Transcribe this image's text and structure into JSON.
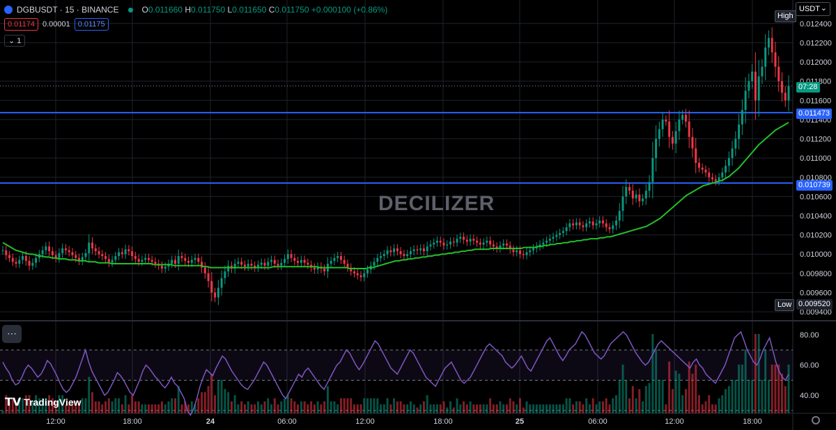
{
  "header": {
    "symbol": "DGBUSDT · 15 · BINANCE",
    "open": "0.011660",
    "high": "0.011750",
    "low": "0.011650",
    "close": "0.011750",
    "change": "+0.000100 (+0.86%)",
    "o_label": "O",
    "h_label": "H",
    "l_label": "L",
    "c_label": "C"
  },
  "quotes": {
    "sell": "0.01174",
    "spread": "0.00001",
    "buy": "0.01175"
  },
  "collapse_label": "1",
  "currency": "USDT",
  "watermark": "DECILIZER",
  "brand": "TradingView",
  "tags": {
    "high_label": "High",
    "low_label": "Low",
    "low_value": "0.009520",
    "countdown": "07:28",
    "upper_line": "0.011473",
    "lower_line": "0.010739"
  },
  "colors": {
    "up": "#089981",
    "down": "#f23645",
    "ma": "#22c02b",
    "rsi": "#7e57c2",
    "line": "#2962ff"
  },
  "chart_data": {
    "type": "candlestick",
    "price_ticks": [
      "0.012400",
      "0.012200",
      "0.012000",
      "0.011800",
      "0.011600",
      "0.011400",
      "0.011200",
      "0.011000",
      "0.010800",
      "0.010600",
      "0.010400",
      "0.010200",
      "0.010000",
      "0.009800",
      "0.009600",
      "0.009400"
    ],
    "rsi_ticks": [
      "80.00",
      "60.00",
      "40.00"
    ],
    "x_ticks": [
      "12:00",
      "18:00",
      "24",
      "06:00",
      "12:00",
      "18:00",
      "25",
      "06:00",
      "12:00",
      "18:00"
    ],
    "horizontal_lines": [
      0.011473,
      0.010739
    ],
    "last_price": 0.01175,
    "high": 0.01246,
    "low": 0.00952,
    "close_series": [
      0.01004,
      0.00999,
      0.00996,
      0.00992,
      0.0099,
      0.00994,
      0.00998,
      0.00993,
      0.00988,
      0.00991,
      0.00996,
      0.01,
      0.01004,
      0.01008,
      0.01003,
      0.00999,
      0.00996,
      0.01001,
      0.01006,
      0.01004,
      0.01002,
      0.00999,
      0.00996,
      0.00993,
      0.00997,
      0.01001,
      0.01012,
      0.01006,
      0.01003,
      0.01,
      0.00998,
      0.00995,
      0.00991,
      0.00994,
      0.00998,
      0.01002,
      0.01,
      0.01005,
      0.01003,
      0.00998,
      0.00995,
      0.00992,
      0.00994,
      0.00996,
      0.00994,
      0.00992,
      0.0099,
      0.00988,
      0.00985,
      0.00987,
      0.0099,
      0.00994,
      0.0099,
      0.00998,
      0.00996,
      0.00993,
      0.00991,
      0.00994,
      0.00996,
      0.00992,
      0.00986,
      0.0098,
      0.00972,
      0.0096,
      0.00955,
      0.00965,
      0.00975,
      0.00982,
      0.00988,
      0.00985,
      0.0099,
      0.00992,
      0.00989,
      0.00987,
      0.0099,
      0.00988,
      0.00986,
      0.00989,
      0.00991,
      0.00988,
      0.00992,
      0.00994,
      0.0099,
      0.00988,
      0.00991,
      0.00995,
      0.01,
      0.00996,
      0.00993,
      0.00991,
      0.00994,
      0.00991,
      0.00989,
      0.00986,
      0.00984,
      0.00987,
      0.00985,
      0.00982,
      0.0099,
      0.00993,
      0.00996,
      0.00998,
      0.00994,
      0.0099,
      0.00986,
      0.00982,
      0.0098,
      0.00978,
      0.00976,
      0.0098,
      0.00984,
      0.00988,
      0.00992,
      0.00996,
      0.00998,
      0.01,
      0.01004,
      0.01002,
      0.01006,
      0.01003,
      0.01,
      0.00998,
      0.01,
      0.01003,
      0.01005,
      0.01004,
      0.01006,
      0.01003,
      0.01008,
      0.0101,
      0.01012,
      0.01014,
      0.01012,
      0.01009,
      0.0101,
      0.01013,
      0.01012,
      0.01016,
      0.01018,
      0.01015,
      0.01013,
      0.01016,
      0.01014,
      0.01012,
      0.0101,
      0.01012,
      0.01014,
      0.0101,
      0.01008,
      0.01006,
      0.01009,
      0.01011,
      0.01009,
      0.01005,
      0.01002,
      0.01004,
      0.01,
      0.00999,
      0.01002,
      0.01004,
      0.01006,
      0.01008,
      0.0101,
      0.01012,
      0.01014,
      0.01016,
      0.01018,
      0.0102,
      0.01022,
      0.01024,
      0.01028,
      0.01032,
      0.0103,
      0.01033,
      0.0103,
      0.01028,
      0.01032,
      0.01034,
      0.0103,
      0.01032,
      0.01035,
      0.01032,
      0.01028,
      0.01026,
      0.0103,
      0.01035,
      0.01045,
      0.0106,
      0.0107,
      0.01066,
      0.01058,
      0.01062,
      0.01055,
      0.01058,
      0.01066,
      0.01075,
      0.011,
      0.0112,
      0.0113,
      0.0114,
      0.01138,
      0.01122,
      0.01115,
      0.01128,
      0.0114,
      0.01145,
      0.01138,
      0.01122,
      0.0111,
      0.01095,
      0.0109,
      0.01088,
      0.01085,
      0.0108,
      0.01078,
      0.01076,
      0.0108,
      0.01085,
      0.01092,
      0.011,
      0.0111,
      0.0112,
      0.01135,
      0.0115,
      0.0117,
      0.0118,
      0.0119,
      0.0116,
      0.01185,
      0.01195,
      0.01215,
      0.01225,
      0.0121,
      0.01195,
      0.0118,
      0.01168,
      0.0116,
      0.01175
    ],
    "ma_series": [
      0.01012,
      0.0101,
      0.01008,
      0.01006,
      0.01004,
      0.01003,
      0.01002,
      0.01001,
      0.01,
      0.01,
      0.00999,
      0.00998,
      0.00998,
      0.00997,
      0.00997,
      0.00996,
      0.00996,
      0.00995,
      0.00995,
      0.00995,
      0.00994,
      0.00994,
      0.00994,
      0.00993,
      0.00993,
      0.00993,
      0.00992,
      0.00992,
      0.00992,
      0.00991,
      0.00991,
      0.00991,
      0.00991,
      0.0099,
      0.0099,
      0.0099,
      0.0099,
      0.0099,
      0.0099,
      0.0099,
      0.0099,
      0.0099,
      0.0099,
      0.0099,
      0.0099,
      0.0099,
      0.00989,
      0.00989,
      0.00989,
      0.00989,
      0.00989,
      0.00989,
      0.00988,
      0.00988,
      0.00988,
      0.00988,
      0.00988,
      0.00988,
      0.00988,
      0.00988,
      0.00988,
      0.00987,
      0.00987,
      0.00986,
      0.00986,
      0.00986,
      0.00986,
      0.00986,
      0.00986,
      0.00986,
      0.00986,
      0.00986,
      0.00986,
      0.00986,
      0.00986,
      0.00986,
      0.00986,
      0.00986,
      0.00986,
      0.00986,
      0.00986,
      0.00986,
      0.00987,
      0.00987,
      0.00987,
      0.00987,
      0.00987,
      0.00987,
      0.00987,
      0.00987,
      0.00987,
      0.00987,
      0.00987,
      0.00987,
      0.00987,
      0.00987,
      0.00986,
      0.00986,
      0.00986,
      0.00986,
      0.00986,
      0.00986,
      0.00986,
      0.00986,
      0.00986,
      0.00985,
      0.00985,
      0.00985,
      0.00985,
      0.00985,
      0.00985,
      0.00986,
      0.00986,
      0.00987,
      0.00988,
      0.00989,
      0.0099,
      0.00991,
      0.00992,
      0.00993,
      0.00993,
      0.00994,
      0.00994,
      0.00995,
      0.00995,
      0.00996,
      0.00996,
      0.00997,
      0.00997,
      0.00998,
      0.00998,
      0.00999,
      0.00999,
      0.01,
      0.01,
      0.01001,
      0.01001,
      0.01002,
      0.01002,
      0.01003,
      0.01003,
      0.01004,
      0.01004,
      0.01005,
      0.01005,
      0.01005,
      0.01005,
      0.01005,
      0.01006,
      0.01006,
      0.01006,
      0.01006,
      0.01006,
      0.01006,
      0.01006,
      0.01006,
      0.01006,
      0.01006,
      0.01007,
      0.01007,
      0.01007,
      0.01007,
      0.01008,
      0.01008,
      0.01009,
      0.01009,
      0.0101,
      0.0101,
      0.01011,
      0.01011,
      0.01012,
      0.01012,
      0.01013,
      0.01013,
      0.01014,
      0.01014,
      0.01015,
      0.01015,
      0.01016,
      0.01016,
      0.01016,
      0.01017,
      0.01017,
      0.01018,
      0.01018,
      0.01019,
      0.0102,
      0.01021,
      0.01022,
      0.01023,
      0.01024,
      0.01025,
      0.01026,
      0.01027,
      0.01028,
      0.01029,
      0.01031,
      0.01033,
      0.01035,
      0.01037,
      0.0104,
      0.01043,
      0.01046,
      0.01049,
      0.01052,
      0.01055,
      0.01058,
      0.01061,
      0.01063,
      0.01065,
      0.01067,
      0.01069,
      0.01071,
      0.01072,
      0.01073,
      0.01074,
      0.01075,
      0.01076,
      0.01077,
      0.01079,
      0.01081,
      0.01084,
      0.01087,
      0.0109,
      0.01094,
      0.01098,
      0.01102,
      0.01106,
      0.0111,
      0.01114,
      0.01117,
      0.0112,
      0.01123,
      0.01126,
      0.01129,
      0.01131,
      0.01133,
      0.01135,
      0.01137
    ],
    "rsi_series": [
      62,
      58,
      55,
      50,
      47,
      48,
      52,
      57,
      60,
      58,
      55,
      52,
      54,
      58,
      63,
      61,
      57,
      53,
      48,
      44,
      42,
      44,
      48,
      52,
      58,
      64,
      70,
      62,
      56,
      52,
      48,
      44,
      40,
      42,
      46,
      50,
      55,
      53,
      50,
      46,
      42,
      40,
      45,
      50,
      56,
      60,
      58,
      55,
      52,
      50,
      47,
      45,
      48,
      52,
      48,
      46,
      42,
      38,
      30,
      27,
      31,
      38,
      46,
      52,
      57,
      55,
      53,
      58,
      62,
      66,
      64,
      60,
      56,
      53,
      50,
      47,
      45,
      44,
      47,
      50,
      54,
      58,
      62,
      60,
      56,
      52,
      48,
      44,
      40,
      38,
      42,
      46,
      50,
      54,
      52,
      56,
      58,
      55,
      52,
      49,
      46,
      44,
      48,
      52,
      56,
      60,
      62,
      66,
      70,
      68,
      64,
      60,
      57,
      60,
      64,
      68,
      72,
      76,
      74,
      70,
      66,
      62,
      58,
      56,
      54,
      58,
      62,
      66,
      70,
      68,
      64,
      60,
      56,
      52,
      50,
      48,
      46,
      50,
      54,
      58,
      60,
      62,
      58,
      54,
      50,
      48,
      50,
      52,
      56,
      60,
      64,
      68,
      72,
      74,
      72,
      70,
      68,
      66,
      62,
      60,
      58,
      60,
      63,
      66,
      62,
      58,
      56,
      60,
      64,
      68,
      72,
      76,
      78,
      74,
      70,
      66,
      63,
      66,
      70,
      72,
      74,
      78,
      82,
      80,
      76,
      72,
      68,
      66,
      64,
      66,
      70,
      74,
      76,
      78,
      80,
      82,
      80,
      76,
      72,
      68,
      65,
      62,
      60,
      62,
      66,
      70,
      74,
      76,
      74,
      72,
      70,
      68,
      66,
      64,
      62,
      60,
      58,
      62,
      64,
      60,
      58,
      54,
      52,
      50,
      48,
      52,
      56,
      60,
      66,
      72,
      78,
      80,
      82,
      76,
      70,
      66,
      62,
      60,
      64,
      70,
      74,
      78,
      70,
      62,
      56,
      52,
      50,
      54
    ]
  }
}
